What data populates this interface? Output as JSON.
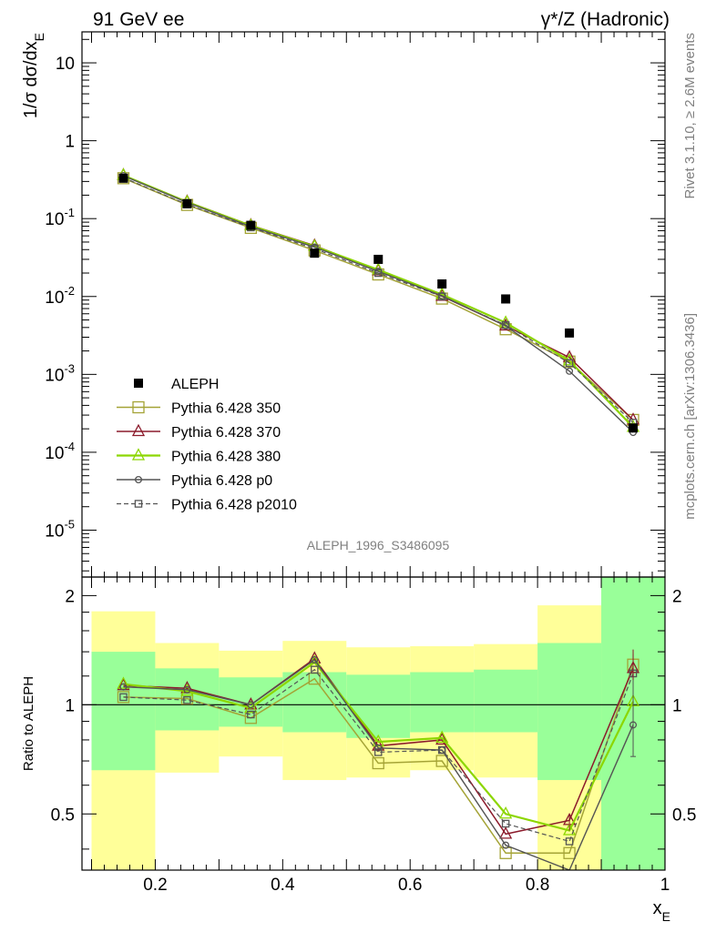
{
  "chart_data": {
    "type": "line",
    "header_left": "91 GeV ee",
    "header_right": "γ*/Z (Hadronic)",
    "side_top": "Rivet 3.1.10, ≥ 2.6M events",
    "side_bottom": "mcplots.cern.ch [arXiv:1306.3436]",
    "analysis_id": "ALEPH_1996_S3486095",
    "top_ylabel": "1/σ dσ/dx_E",
    "ratio_ylabel": "Ratio to ALEPH",
    "xlabel": "x_E",
    "xlim": [
      0.085,
      1.0
    ],
    "top_ylim": [
      2.5e-06,
      25
    ],
    "top_yscale": "log",
    "ratio_ylim": [
      0.35,
      2.25
    ],
    "ratio_yscale": "log",
    "x_ticks": [
      "0.2",
      "0.4",
      "0.6",
      "0.8",
      "1"
    ],
    "top_yticks": [
      "10",
      "1",
      "10^-1",
      "10^-2",
      "10^-3",
      "10^-4",
      "10^-5"
    ],
    "ratio_yticks": [
      "2",
      "1",
      "0.5"
    ],
    "legend_position": "bottom-left",
    "data": {
      "name": "ALEPH",
      "x": [
        0.15,
        0.25,
        0.35,
        0.45,
        0.55,
        0.65,
        0.75,
        0.85,
        0.95
      ],
      "y": [
        0.33,
        0.155,
        0.082,
        0.036,
        0.03,
        0.0145,
        0.0093,
        0.0034,
        0.000205
      ]
    },
    "bins": [
      [
        0.1,
        0.2
      ],
      [
        0.2,
        0.3
      ],
      [
        0.3,
        0.4
      ],
      [
        0.4,
        0.5
      ],
      [
        0.5,
        0.6
      ],
      [
        0.6,
        0.7
      ],
      [
        0.7,
        0.8
      ],
      [
        0.8,
        0.9
      ],
      [
        0.9,
        1.0
      ]
    ],
    "band_inner": [
      [
        0.66,
        1.4
      ],
      [
        0.85,
        1.26
      ],
      [
        0.87,
        1.19
      ],
      [
        0.84,
        1.23
      ],
      [
        0.81,
        1.21
      ],
      [
        0.84,
        1.23
      ],
      [
        0.84,
        1.25
      ],
      [
        0.62,
        1.48
      ],
      [
        0.35,
        2.25
      ]
    ],
    "band_outer": [
      [
        0.35,
        1.81
      ],
      [
        0.65,
        1.48
      ],
      [
        0.72,
        1.41
      ],
      [
        0.62,
        1.5
      ],
      [
        0.63,
        1.44
      ],
      [
        0.66,
        1.45
      ],
      [
        0.63,
        1.47
      ],
      [
        0.35,
        1.88
      ],
      [
        0.35,
        2.25
      ]
    ],
    "series": [
      {
        "name": "Pythia 6.428 350",
        "color": "#a4a336",
        "marker": "square",
        "dash": "none",
        "y": [
          0.33,
          0.15,
          0.076,
          0.039,
          0.0192,
          0.0094,
          0.0038,
          0.00146,
          0.00026
        ],
        "ratio": [
          1.05,
          1.04,
          0.92,
          1.18,
          0.69,
          0.7,
          0.39,
          0.39,
          1.29
        ]
      },
      {
        "name": "Pythia 6.428 370",
        "color": "#8b1a2b",
        "marker": "triangle",
        "dash": "none",
        "y": [
          0.36,
          0.165,
          0.082,
          0.045,
          0.0215,
          0.0101,
          0.0042,
          0.00165,
          0.00026
        ],
        "ratio": [
          1.13,
          1.11,
          1.0,
          1.34,
          0.77,
          0.8,
          0.44,
          0.48,
          1.26
        ]
      },
      {
        "name": "Pythia 6.428 380",
        "color": "#8cd600",
        "marker": "triangle",
        "dash": "none",
        "y": [
          0.36,
          0.163,
          0.081,
          0.044,
          0.022,
          0.0106,
          0.0046,
          0.0015,
          0.00021
        ],
        "ratio": [
          1.14,
          1.09,
          0.98,
          1.31,
          0.79,
          0.81,
          0.5,
          0.45,
          1.02
        ]
      },
      {
        "name": "Pythia 6.428 p0",
        "color": "#545454",
        "marker": "circle",
        "dash": "none",
        "y": [
          0.355,
          0.161,
          0.079,
          0.043,
          0.021,
          0.0102,
          0.0042,
          0.0011,
          0.00018
        ],
        "ratio": [
          1.12,
          1.1,
          1.0,
          1.33,
          0.76,
          0.75,
          0.41,
          0.31,
          0.88
        ]
      },
      {
        "name": "Pythia 6.428 p2010",
        "color": "#545454",
        "marker": "square",
        "dash": "5,3",
        "y": [
          0.335,
          0.152,
          0.077,
          0.041,
          0.02,
          0.01,
          0.0043,
          0.0014,
          0.00024
        ],
        "ratio": [
          1.05,
          1.03,
          0.94,
          1.25,
          0.74,
          0.75,
          0.47,
          0.42,
          1.22
        ]
      }
    ]
  }
}
